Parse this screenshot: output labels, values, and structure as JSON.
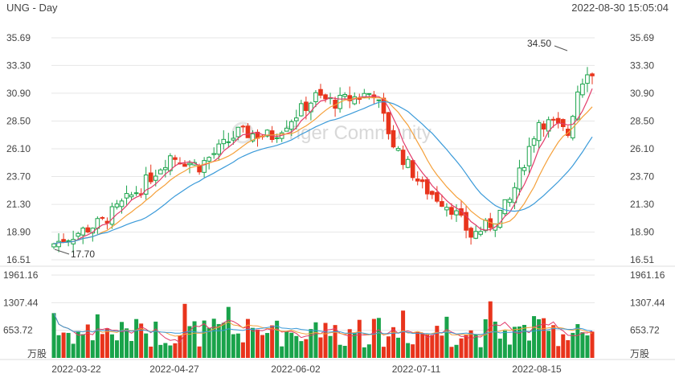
{
  "header": {
    "title": "UNG - Day",
    "datetime": "2022-08-30 15:05:04"
  },
  "watermark": "Tiger Community",
  "colors": {
    "up": "#19a34a",
    "down": "#e8341c",
    "ma5": "#e23b6a",
    "ma10": "#f5a03a",
    "ma20": "#3a9ad9",
    "grid": "#e6e6e6",
    "text": "#444444"
  },
  "chart_data": {
    "type": "candlestick",
    "price_axis": {
      "ticks": [
        "35.69",
        "33.30",
        "30.90",
        "28.50",
        "26.10",
        "23.70",
        "21.30",
        "18.90",
        "16.51"
      ],
      "ylim": [
        16.51,
        35.69
      ]
    },
    "volume_axis": {
      "ticks": [
        "1961.16",
        "1307.44",
        "653.72"
      ],
      "unit": "万股",
      "ylim": [
        0,
        1961.16
      ]
    },
    "x_ticks": [
      "2022-03-22",
      "2022-04-27",
      "2022-06-02",
      "2022-07-11",
      "2022-08-15"
    ],
    "annotations": {
      "max": "34.50",
      "min": "17.70"
    },
    "moving_averages": [
      "MA5",
      "MA10",
      "MA20"
    ]
  }
}
